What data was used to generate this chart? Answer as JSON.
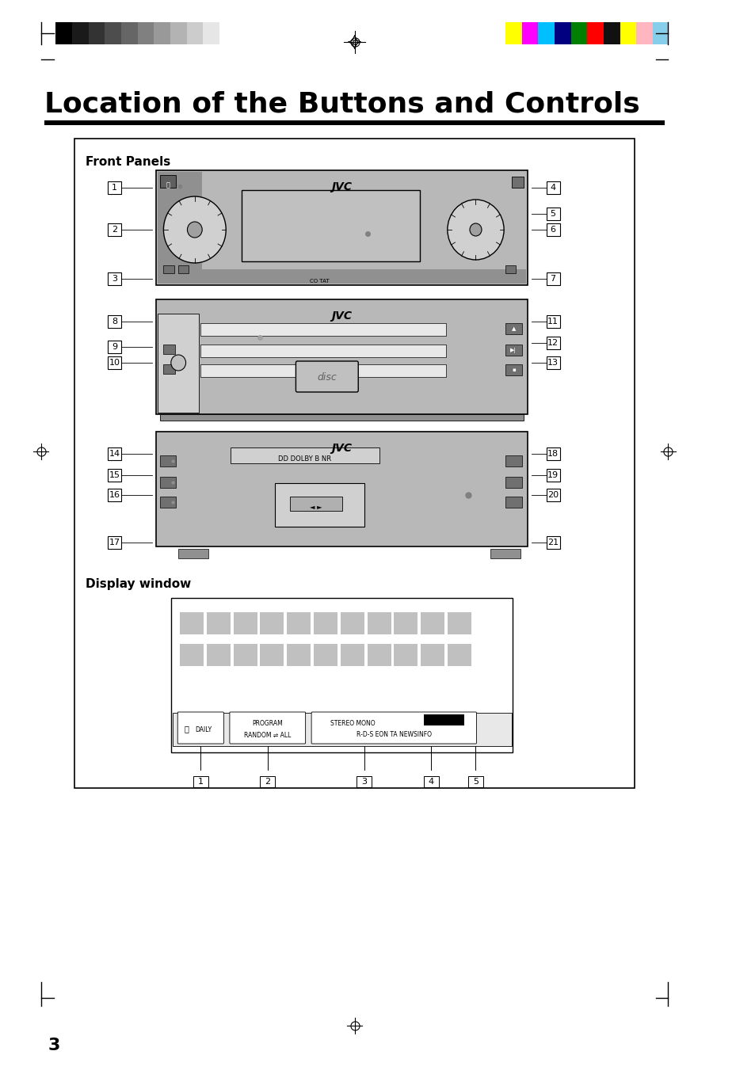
{
  "title": "Location of the Buttons and Controls",
  "section1": "Front Panels",
  "section2": "Display window",
  "page_number": "3",
  "bg_color": "#ffffff",
  "border_color": "#000000",
  "device_fill": "#c8c8c8",
  "device_border": "#000000",
  "label_numbers_unit1": [
    "1",
    "2",
    "3",
    "4",
    "5",
    "6",
    "7"
  ],
  "label_numbers_unit2": [
    "8",
    "9",
    "10",
    "11",
    "12",
    "13"
  ],
  "label_numbers_unit3": [
    "14",
    "15",
    "16",
    "17",
    "18",
    "19",
    "20",
    "21"
  ],
  "label_numbers_display": [
    "1",
    "2",
    "3",
    "4",
    "5"
  ],
  "gray_bar_colors": [
    "#000000",
    "#1a1a1a",
    "#333333",
    "#4d4d4d",
    "#666666",
    "#808080",
    "#999999",
    "#b3b3b3",
    "#cccccc",
    "#e6e6e6",
    "#ffffff"
  ],
  "color_bars": [
    "#ffff00",
    "#ff00ff",
    "#00bfff",
    "#000080",
    "#008000",
    "#ff0000",
    "#000000",
    "#ffff00",
    "#ff69b4",
    "#87ceeb"
  ]
}
